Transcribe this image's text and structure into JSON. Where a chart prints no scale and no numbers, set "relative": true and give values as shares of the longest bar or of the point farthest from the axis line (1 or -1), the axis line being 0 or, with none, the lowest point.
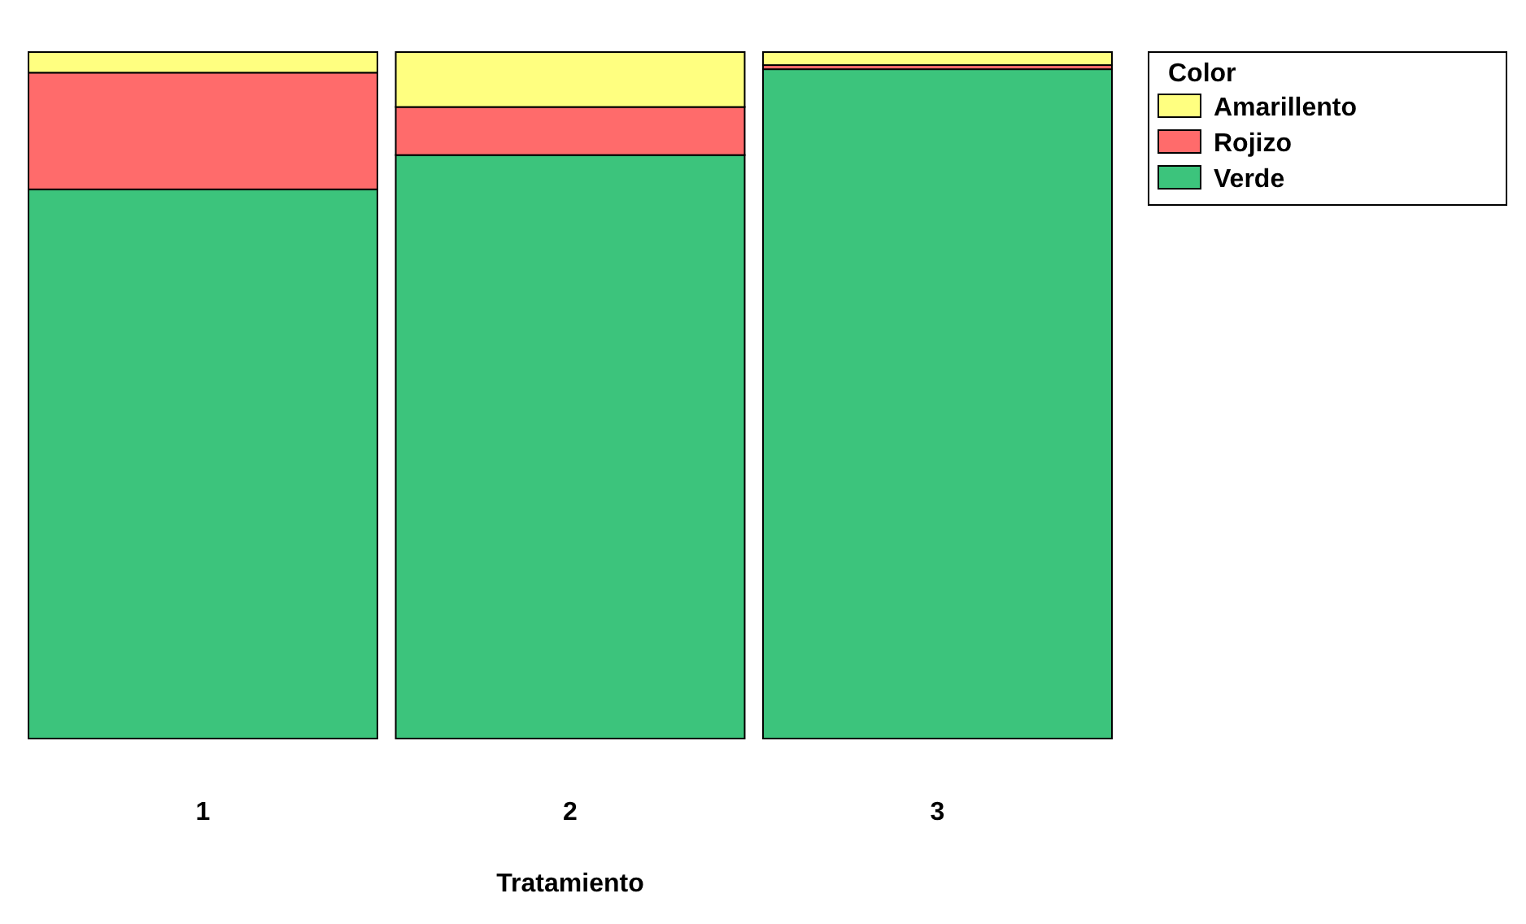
{
  "chart_data": {
    "type": "bar",
    "stacked": true,
    "relative": true,
    "xlabel": "Tratamiento",
    "legend_title": "Color",
    "legend": "top right",
    "categories": [
      "1",
      "2",
      "3"
    ],
    "series": [
      {
        "name": "Verde",
        "color": "#3cc47c",
        "values": [
          0.8,
          0.85,
          0.975
        ]
      },
      {
        "name": "Rojizo",
        "color": "#ff6b6b",
        "values": [
          0.17,
          0.07,
          0.006
        ]
      },
      {
        "name": "Amarillento",
        "color": "#ffff80",
        "values": [
          0.03,
          0.08,
          0.019
        ]
      }
    ]
  }
}
